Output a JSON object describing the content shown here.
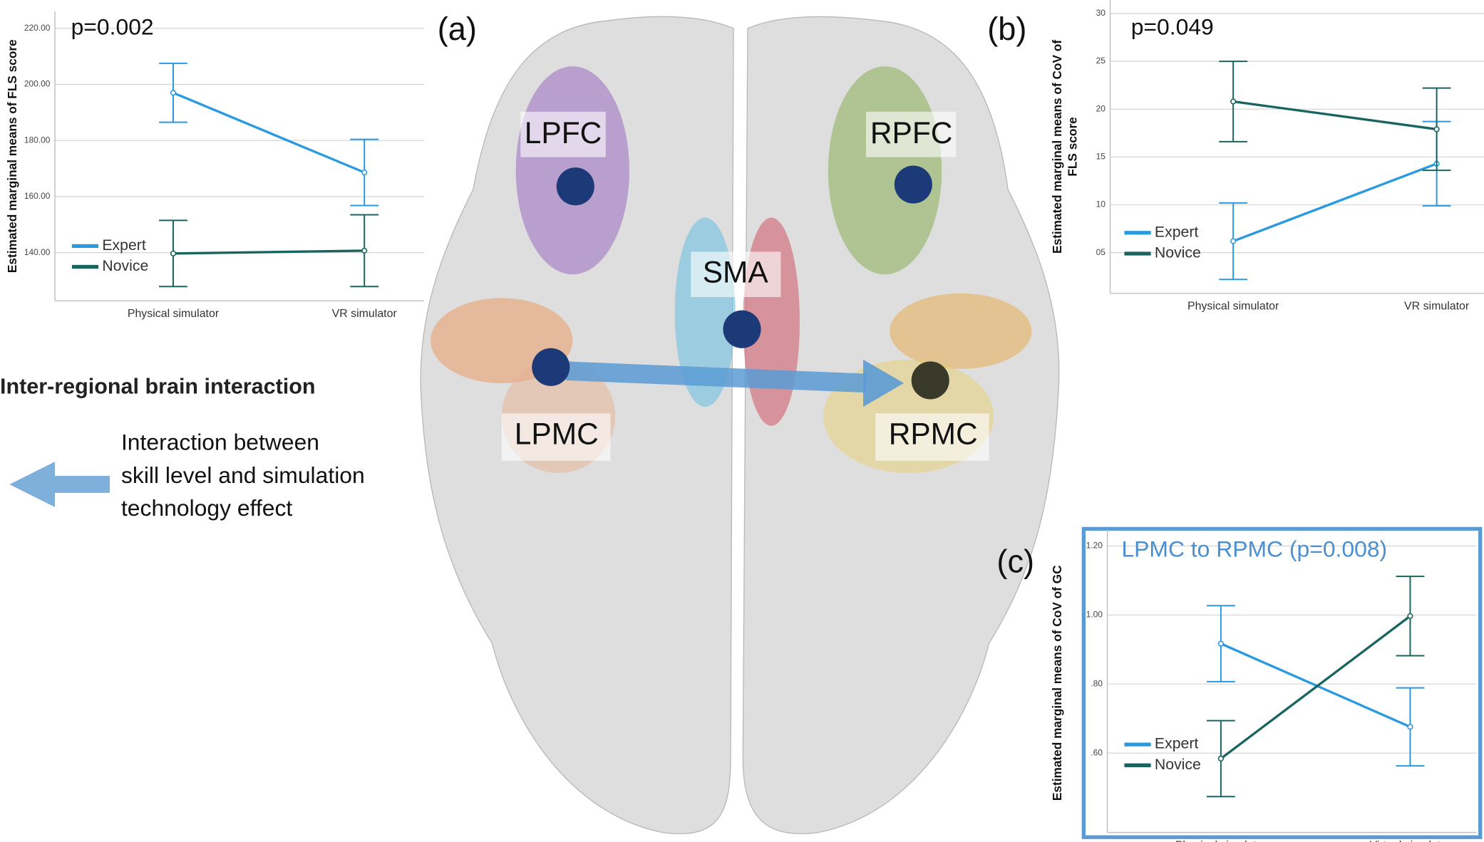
{
  "chart_data": [
    {
      "type": "line",
      "note": "p=0.002",
      "y_label": "Estimated marginal means of FLS score",
      "categories": [
        "Physical simulator",
        "VR simulator"
      ],
      "series": [
        {
          "name": "Expert",
          "color": "#2a9ae0",
          "values": [
            197,
            168.6
          ],
          "errors": [
            10.5,
            11.8
          ]
        },
        {
          "name": "Novice",
          "color": "#1a6460",
          "values": [
            139.7,
            140.7
          ],
          "errors": [
            11.8,
            12.8
          ]
        }
      ],
      "ylim": [
        122.8,
        226
      ],
      "yticks": [
        {
          "value": 140,
          "label": "140.00"
        },
        {
          "value": 160,
          "label": "160.00"
        },
        {
          "value": 180,
          "label": "180.00"
        },
        {
          "value": 200,
          "label": "200.00"
        },
        {
          "value": 220,
          "label": "220.00"
        }
      ],
      "grid": true
    },
    {
      "type": "line",
      "note": "p=0.049",
      "y_label": [
        "Estimated marginal means of CoV of",
        "FLS score"
      ],
      "categories": [
        "Physical simulator",
        "VR simulator"
      ],
      "series": [
        {
          "name": "Expert",
          "color": "#2a9ae0",
          "values": [
            6.2,
            14.3
          ],
          "errors": [
            4.0,
            4.4
          ]
        },
        {
          "name": "Novice",
          "color": "#1a6460",
          "values": [
            20.8,
            17.9
          ],
          "errors": [
            4.2,
            4.3
          ]
        }
      ],
      "ylim": [
        0.75,
        31.4
      ],
      "yticks": [
        {
          "value": 5,
          "label": "05"
        },
        10,
        15,
        20,
        25,
        30
      ],
      "grid": true
    },
    {
      "type": "line",
      "note": "LPMC to RPMC (p=0.008)",
      "y_label": "Estimated marginal means of CoV of  GC",
      "categories": [
        "Physical simulator",
        "Virtual simulator"
      ],
      "series": [
        {
          "name": "Expert",
          "color": "#2a9ae0",
          "values": [
            0.917,
            0.676
          ],
          "errors": [
            0.11,
            0.113
          ]
        },
        {
          "name": "Novice",
          "color": "#1a6460",
          "values": [
            0.584,
            0.997
          ],
          "errors": [
            0.11,
            0.115
          ]
        }
      ],
      "ylim": [
        0.37,
        1.247
      ],
      "yticks": [
        {
          "value": 0.6,
          "label": ".60"
        },
        {
          "value": 0.8,
          "label": ".80"
        },
        {
          "value": 1.0,
          "label": "1.00"
        },
        {
          "value": 1.2,
          "label": "1.20"
        }
      ],
      "grid": true
    }
  ],
  "figure": {
    "panel_labels": [
      "(a)",
      "(b)",
      "(c)"
    ],
    "regions": [
      "LPFC",
      "RPFC",
      "SMA",
      "LPMC",
      "RPMC"
    ],
    "side_title": "Inter-regional brain interaction",
    "side_text": [
      "Interaction between",
      "skill level and simulation",
      "technology effect"
    ]
  }
}
